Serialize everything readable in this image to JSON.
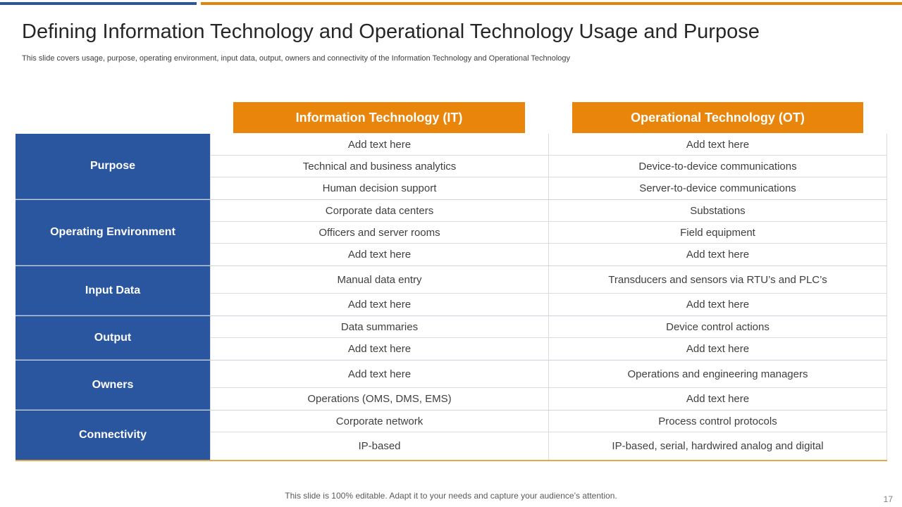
{
  "title": "Defining Information Technology and Operational Technology Usage and Purpose",
  "subtitle": "This slide covers usage, purpose, operating environment, input data, output, owners and connectivity of the Information Technology and Operational Technology",
  "columns": {
    "it": "Information Technology (IT)",
    "ot": "Operational Technology (OT)"
  },
  "groups": [
    {
      "label": "Purpose",
      "rows": [
        {
          "it": "Add text here",
          "ot": "Add text here"
        },
        {
          "it": "Technical and business analytics",
          "ot": "Device-to-device communications"
        },
        {
          "it": "Human decision support",
          "ot": "Server-to-device communications"
        }
      ]
    },
    {
      "label": "Operating Environment",
      "rows": [
        {
          "it": "Corporate data centers",
          "ot": "Substations"
        },
        {
          "it": "Officers and server rooms",
          "ot": "Field equipment"
        },
        {
          "it": "Add text here",
          "ot": "Add text here"
        }
      ]
    },
    {
      "label": "Input Data",
      "rows": [
        {
          "it": "Manual data entry",
          "ot": "Transducers and sensors via RTU’s and PLC’s"
        },
        {
          "it": "Add text here",
          "ot": "Add text here"
        }
      ]
    },
    {
      "label": "Output",
      "rows": [
        {
          "it": "Data summaries",
          "ot": "Device control actions"
        },
        {
          "it": "Add text here",
          "ot": "Add text here"
        }
      ]
    },
    {
      "label": "Owners",
      "rows": [
        {
          "it": "Add text here",
          "ot": "Operations and engineering managers"
        },
        {
          "it": "Operations (OMS, DMS, EMS)",
          "ot": "Add text here"
        }
      ]
    },
    {
      "label": "Connectivity",
      "rows": [
        {
          "it": "Corporate network",
          "ot": "Process control protocols"
        },
        {
          "it": "IP-based",
          "ot": "IP-based, serial, hardwired analog and digital"
        }
      ]
    }
  ],
  "footer": "This slide is 100% editable. Adapt it to your needs and capture your audience’s attention.",
  "page_number": "17"
}
